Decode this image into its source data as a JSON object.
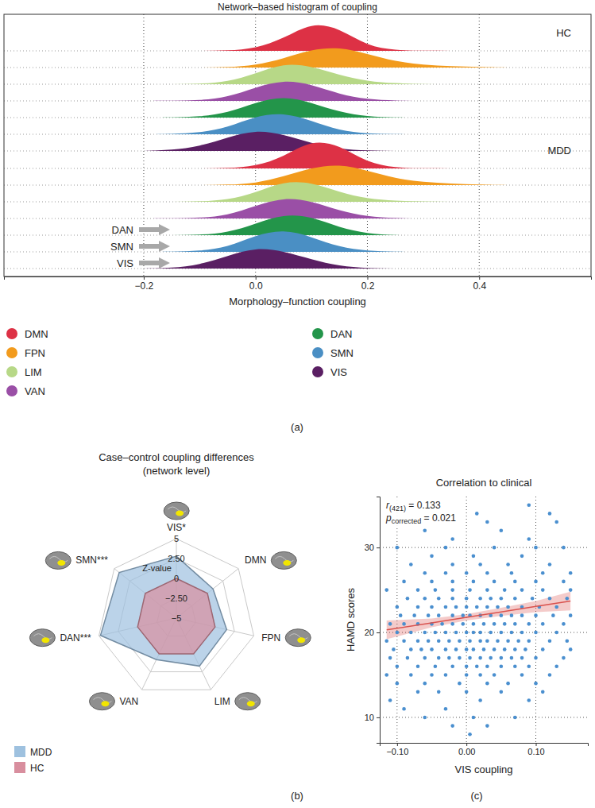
{
  "chart_data": [
    {
      "type": "ridgeline",
      "title": "Network–based histogram of coupling",
      "x_label": "Morphology–function coupling",
      "panel_label": "(a)",
      "xlim": [
        -0.45,
        0.6
      ],
      "xticks": [
        {
          "value": -0.2,
          "label": "−0.2"
        },
        {
          "value": 0,
          "label": "0.0"
        },
        {
          "value": 0.2,
          "label": "0.2"
        },
        {
          "value": 0.4,
          "label": "0.4"
        }
      ],
      "ylim": [
        0,
        1
      ],
      "grid": true,
      "legend": "bottom",
      "groups": [
        "HC",
        "MDD"
      ],
      "x": [
        -0.2,
        -0.15,
        -0.1,
        -0.05,
        0,
        0.05,
        0.1,
        0.15,
        0.2,
        0.25,
        0.3,
        0.35,
        0.4,
        0.45
      ],
      "series": [
        {
          "name": "DMN",
          "color": "#dd3145",
          "values": [
            [
              0,
              0,
              0,
              0.01,
              0.08,
              0.4,
              0.95,
              0.75,
              0.15,
              0.02,
              0,
              0,
              0,
              0
            ],
            [
              0,
              0,
              0,
              0.01,
              0.07,
              0.38,
              0.95,
              0.78,
              0.18,
              0.02,
              0,
              0,
              0,
              0
            ]
          ]
        },
        {
          "name": "FPN",
          "color": "#f29b1d",
          "values": [
            [
              0,
              0,
              0,
              0.01,
              0.07,
              0.3,
              0.6,
              0.68,
              0.45,
              0.2,
              0.09,
              0.04,
              0.02,
              0
            ],
            [
              0,
              0,
              0,
              0.01,
              0.06,
              0.28,
              0.58,
              0.7,
              0.48,
              0.22,
              0.1,
              0.05,
              0.02,
              0
            ]
          ]
        },
        {
          "name": "LIM",
          "color": "#b7d887",
          "values": [
            [
              0,
              0,
              0.01,
              0.08,
              0.35,
              0.7,
              0.6,
              0.3,
              0.1,
              0.03,
              0,
              0,
              0,
              0
            ],
            [
              0,
              0,
              0.01,
              0.06,
              0.3,
              0.68,
              0.65,
              0.32,
              0.1,
              0.03,
              0.01,
              0,
              0,
              0
            ]
          ]
        },
        {
          "name": "VAN",
          "color": "#9a4fa6",
          "values": [
            [
              0,
              0,
              0.02,
              0.12,
              0.45,
              0.7,
              0.55,
              0.22,
              0.05,
              0.01,
              0,
              0,
              0,
              0
            ],
            [
              0,
              0,
              0.02,
              0.1,
              0.42,
              0.7,
              0.58,
              0.25,
              0.06,
              0.01,
              0,
              0,
              0,
              0
            ]
          ]
        },
        {
          "name": "DAN",
          "color": "#23954a",
          "values": [
            [
              0,
              0,
              0.03,
              0.15,
              0.5,
              0.72,
              0.5,
              0.18,
              0.03,
              0,
              0,
              0,
              0,
              0
            ],
            [
              0,
              0,
              0.01,
              0.08,
              0.38,
              0.7,
              0.62,
              0.25,
              0.05,
              0,
              0,
              0,
              0,
              0
            ]
          ]
        },
        {
          "name": "SMN",
          "color": "#4a8fc4",
          "values": [
            [
              0,
              0.01,
              0.05,
              0.22,
              0.6,
              0.72,
              0.45,
              0.12,
              0.02,
              0,
              0,
              0,
              0,
              0
            ],
            [
              0,
              0,
              0.03,
              0.15,
              0.55,
              0.75,
              0.5,
              0.15,
              0.03,
              0,
              0,
              0,
              0,
              0
            ]
          ]
        },
        {
          "name": "VIS",
          "color": "#5a1f63",
          "values": [
            [
              0,
              0.03,
              0.15,
              0.45,
              0.7,
              0.55,
              0.25,
              0.06,
              0.01,
              0,
              0,
              0,
              0,
              0
            ],
            [
              0,
              0.02,
              0.12,
              0.42,
              0.7,
              0.58,
              0.3,
              0.08,
              0.01,
              0,
              0,
              0,
              0,
              0
            ]
          ]
        }
      ],
      "annotations": [
        "DAN",
        "SMN",
        "VIS"
      ]
    },
    {
      "type": "radar",
      "title": "Case–control coupling differences (network level)",
      "y_label": "Z-value",
      "panel_label": "(b)",
      "categories": [
        "VIS*",
        "DMN",
        "FPN",
        "LIM",
        "VAN",
        "DAN***",
        "SMN***"
      ],
      "ylim": [
        -5,
        5
      ],
      "yticks": [
        {
          "value": -5,
          "label": "−5"
        },
        {
          "value": -2.5,
          "label": "−2.50"
        },
        0,
        {
          "value": 2.5,
          "label": "2.50"
        },
        5
      ],
      "grid": true,
      "legend": "bottom-left",
      "series": [
        {
          "name": "MDD",
          "color": "#9ec1df",
          "values": [
            2.8,
            0.9,
            1.5,
            1.7,
            0.8,
            4.8,
            4.2
          ]
        },
        {
          "name": "HC",
          "color": "#d88e9e",
          "values": [
            0,
            0,
            0,
            0,
            0,
            0,
            0
          ]
        }
      ]
    },
    {
      "type": "scatter",
      "title": "Correlation to clinical",
      "x_label": "VIS coupling",
      "y_label": "HAMD scores",
      "panel_label": "(c)",
      "xlim": [
        -0.125,
        0.175
      ],
      "xticks": [
        {
          "value": -0.1,
          "label": "−0.10"
        },
        {
          "value": 0,
          "label": "0.00"
        },
        {
          "value": 0.1,
          "label": "0.10"
        }
      ],
      "ylim": [
        7,
        36
      ],
      "yticks": [
        10,
        20,
        30
      ],
      "grid": true,
      "color": "#4a8fcf",
      "marker": "circle",
      "x": [
        0.005,
        -0.02,
        0.03,
        -0.06,
        0.01,
        0.07,
        -0.09,
        -0.03,
        -0.11,
        0.02,
        0.09,
        -0.07,
        -0.04,
        0,
        0.05,
        0.11,
        -0.1,
        -0.06,
        -0.01,
        0.03,
        0.06,
        0.1,
        -0.115,
        -0.08,
        -0.05,
        -0.03,
        0,
        0.02,
        0.04,
        0.08,
        0.12,
        -0.1,
        -0.07,
        -0.045,
        -0.02,
        0,
        0.015,
        0.03,
        0.05,
        0.07,
        0.09,
        0.13,
        -0.11,
        -0.085,
        -0.06,
        -0.04,
        -0.025,
        -0.01,
        0.005,
        0.02,
        0.035,
        0.05,
        0.065,
        0.08,
        0.1,
        0.14,
        -0.105,
        -0.08,
        -0.065,
        -0.05,
        -0.03,
        -0.015,
        0,
        0.01,
        0.025,
        0.04,
        0.055,
        0.07,
        0.085,
        0.11,
        0.15,
        -0.115,
        -0.09,
        -0.07,
        -0.055,
        -0.04,
        -0.025,
        -0.01,
        0.005,
        0.02,
        0.03,
        0.045,
        0.06,
        0.075,
        0.09,
        0.12,
        0.145,
        -0.1,
        -0.08,
        -0.06,
        -0.045,
        -0.03,
        -0.015,
        0,
        0.01,
        0.02,
        0.035,
        0.05,
        0.065,
        0.08,
        0.1,
        0.13,
        -0.11,
        -0.09,
        -0.07,
        -0.05,
        -0.035,
        -0.02,
        -0.005,
        0.01,
        0.025,
        0.04,
        0.055,
        0.07,
        0.09,
        0.11,
        0.14,
        -0.095,
        -0.075,
        -0.055,
        -0.04,
        -0.02,
        -0.005,
        0.005,
        0.02,
        0.035,
        0.05,
        0.065,
        0.08,
        0.1,
        0.125,
        0.15,
        -0.1,
        -0.07,
        -0.05,
        -0.03,
        -0.015,
        0,
        0.015,
        0.03,
        0.045,
        0.06,
        0.08,
        0.105,
        0.13,
        -0.085,
        -0.06,
        -0.04,
        -0.02,
        0,
        0.02,
        0.035,
        0.05,
        0.07,
        0.095,
        0.12,
        0.145,
        -0.115,
        -0.07,
        -0.045,
        -0.02,
        0.005,
        0.03,
        0.055,
        0.08,
        0.11,
        0.15,
        -0.09,
        -0.05,
        -0.02,
        0.01,
        0.04,
        0.07,
        0.1,
        0.14,
        -0.06,
        -0.03,
        0,
        0.03,
        0.065,
        0.11,
        0.15,
        -0.08,
        -0.02,
        0.02,
        0.06,
        0.12,
        -0.05,
        0.01,
        0.08,
        -0.1,
        -0.03,
        0.04,
        0.1,
        0.14,
        -0.02,
        0.09,
        -0.06,
        0.05,
        0.03,
        0.13,
        0.015,
        0.12,
        0.09
      ],
      "values": [
        8,
        9,
        9,
        10,
        10,
        10,
        11,
        11,
        12,
        12,
        12,
        13,
        13,
        13,
        13,
        13,
        14,
        14,
        14,
        14,
        14,
        14,
        15,
        15,
        15,
        15,
        15,
        15,
        15,
        15,
        15,
        16,
        16,
        16,
        16,
        16,
        16,
        16,
        16,
        16,
        16,
        16,
        17,
        17,
        17,
        17,
        17,
        17,
        17,
        17,
        17,
        17,
        17,
        17,
        17,
        17,
        18,
        18,
        18,
        18,
        18,
        18,
        18,
        18,
        18,
        18,
        18,
        18,
        18,
        18,
        18,
        19,
        19,
        19,
        19,
        19,
        19,
        19,
        19,
        19,
        19,
        19,
        19,
        19,
        19,
        19,
        19,
        20,
        20,
        20,
        20,
        20,
        20,
        20,
        20,
        20,
        20,
        20,
        20,
        20,
        20,
        20,
        21,
        21,
        21,
        21,
        21,
        21,
        21,
        21,
        21,
        21,
        21,
        21,
        21,
        21,
        21,
        22,
        22,
        22,
        22,
        22,
        22,
        22,
        22,
        22,
        22,
        22,
        22,
        22,
        22,
        22,
        23,
        23,
        23,
        23,
        23,
        23,
        23,
        23,
        23,
        23,
        23,
        23,
        23,
        24,
        24,
        24,
        24,
        24,
        24,
        24,
        24,
        24,
        24,
        24,
        24,
        25,
        25,
        25,
        25,
        25,
        25,
        25,
        25,
        25,
        25,
        26,
        26,
        26,
        26,
        26,
        26,
        26,
        26,
        27,
        27,
        27,
        27,
        27,
        27,
        27,
        28,
        28,
        28,
        28,
        28,
        29,
        29,
        29,
        30,
        30,
        30,
        30,
        30,
        31,
        31,
        32,
        32,
        33,
        33,
        34,
        34,
        35
      ],
      "fit": {
        "color": "#d9534f",
        "x": [
          -0.115,
          -0.05,
          0,
          0.05,
          0.1,
          0.15
        ],
        "values": [
          20.3,
          21.13,
          21.78,
          22.42,
          23.06,
          23.7
        ],
        "lower": [
          19.2,
          20.6,
          21.4,
          21.95,
          22.4,
          22.6
        ],
        "upper": [
          21.4,
          21.65,
          22.15,
          22.9,
          23.7,
          24.8
        ]
      },
      "annotations": [
        {
          "text": "r",
          "subscript": "(421)",
          "suffix": " = 0.133"
        },
        {
          "text": "p",
          "subscript": "corrected",
          "suffix": " = 0.021"
        }
      ]
    }
  ]
}
